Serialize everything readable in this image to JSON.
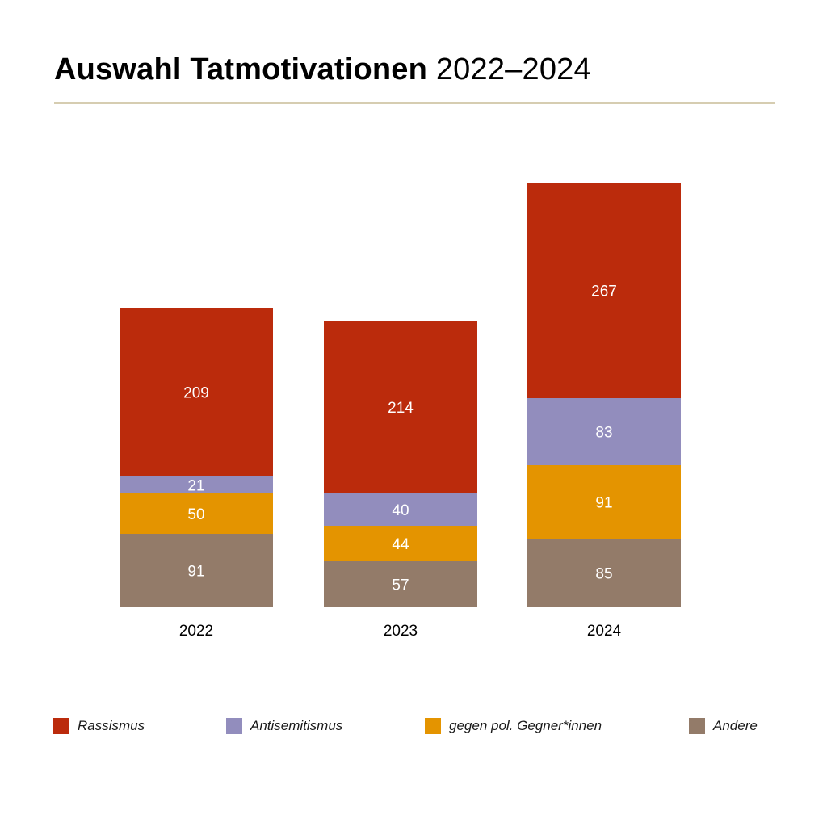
{
  "title": {
    "bold": "Auswahl Tatmotivationen",
    "light": "2022–2024"
  },
  "colors": {
    "rassismus": "#bb2b0c",
    "antisemitismus": "#928dbd",
    "gegner": "#e49400",
    "andere": "#937b69",
    "rule": "#d6cdb1",
    "value_label": "#ffffff",
    "axis_label": "#000000"
  },
  "legend": [
    {
      "label": "Rassismus",
      "color": "#bb2b0c"
    },
    {
      "label": "Antisemitismus",
      "color": "#928dbd"
    },
    {
      "label": "gegen pol. Gegner*innen",
      "color": "#e49400"
    },
    {
      "label": "Andere",
      "color": "#937b69"
    }
  ],
  "chart_data": {
    "type": "bar",
    "stacked": true,
    "categories": [
      "2022",
      "2023",
      "2024"
    ],
    "series": [
      {
        "name": "Andere",
        "color": "#937b69",
        "values": [
          91,
          57,
          85
        ]
      },
      {
        "name": "gegen pol. Gegner*innen",
        "color": "#e49400",
        "values": [
          50,
          44,
          91
        ]
      },
      {
        "name": "Antisemitismus",
        "color": "#928dbd",
        "values": [
          21,
          40,
          83
        ]
      },
      {
        "name": "Rassismus",
        "color": "#bb2b0c",
        "values": [
          209,
          214,
          267
        ]
      }
    ],
    "title": "Auswahl Tatmotivationen 2022–2024",
    "xlabel": "",
    "ylabel": "",
    "grid": false,
    "legend_position": "bottom",
    "data_labels": true
  }
}
